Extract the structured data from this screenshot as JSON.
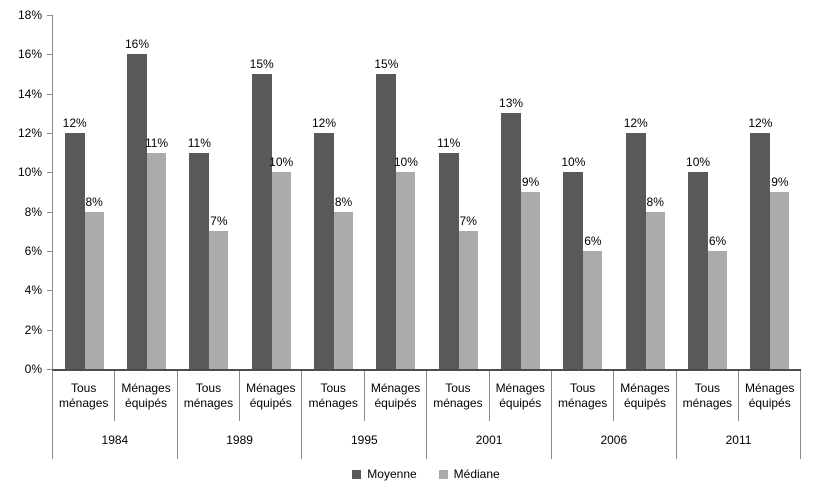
{
  "chart_data": {
    "type": "bar",
    "title": "",
    "xlabel": "",
    "ylabel": "",
    "ylim": [
      0,
      18
    ],
    "ytick_step": 2,
    "ytick_suffix": "%",
    "grid": false,
    "legend_position": "bottom",
    "years": [
      "1984",
      "1989",
      "1995",
      "2001",
      "2006",
      "2011"
    ],
    "sub_categories": [
      "Tous ménages",
      "Ménages équipés"
    ],
    "series": [
      {
        "name": "Moyenne",
        "color": "#595959",
        "values": [
          12,
          16,
          11,
          15,
          12,
          15,
          11,
          13,
          10,
          12,
          10,
          12
        ]
      },
      {
        "name": "Médiane",
        "color": "#ababab",
        "values": [
          8,
          11,
          7,
          10,
          8,
          10,
          7,
          9,
          6,
          8,
          6,
          9
        ]
      }
    ],
    "value_label_suffix": "%",
    "ytick_labels": [
      "0%",
      "2%",
      "4%",
      "6%",
      "8%",
      "10%",
      "12%",
      "14%",
      "16%",
      "18%"
    ],
    "colors": {
      "axis_line": "#4d4d4d",
      "separator_line": "#8c8c8c",
      "text": "#000000",
      "background": "#ffffff"
    }
  }
}
